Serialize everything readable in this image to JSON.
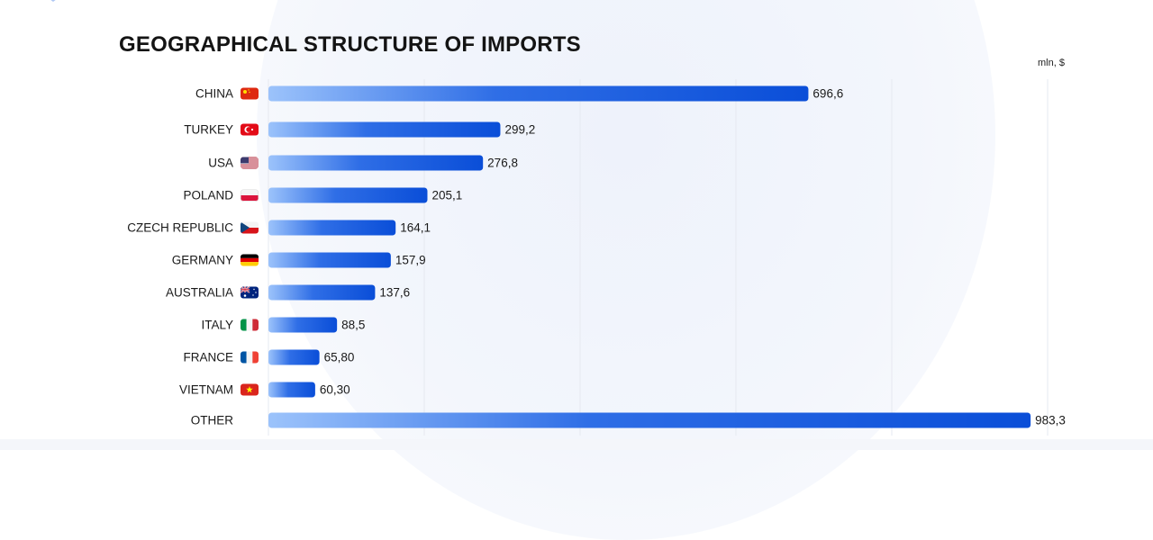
{
  "header": {
    "title": "GEOGRAPHICAL STRUCTURE OF IMPORTS",
    "unit_label": "mln, $"
  },
  "chart_data": {
    "type": "bar",
    "orientation": "horizontal",
    "title": "GEOGRAPHICAL STRUCTURE OF IMPORTS",
    "unit": "mln, $",
    "xlim": [
      0,
      1000
    ],
    "grid": true,
    "categories": [
      "CHINA",
      "TURKEY",
      "USA",
      "POLAND",
      "CZECH REPUBLIC",
      "GERMANY",
      "AUSTRALIA",
      "ITALY",
      "FRANCE",
      "VIETNAM",
      "OTHER"
    ],
    "values": [
      696.6,
      299.2,
      276.8,
      205.1,
      164.1,
      157.9,
      137.6,
      88.5,
      65.8,
      60.3,
      983.3
    ],
    "value_labels": [
      "696,6",
      "299,2",
      "276,8",
      "205,1",
      "164,1",
      "157,9",
      "137,6",
      "88,5",
      "65,80",
      "60,30",
      "983,3"
    ],
    "flags": [
      "china-flag",
      "turkey-flag",
      "usa-flag",
      "poland-flag",
      "czech-flag",
      "germany-flag",
      "australia-flag",
      "italy-flag",
      "france-flag",
      "vietnam-flag",
      ""
    ],
    "colors": {
      "bar_start": "#9cc3fb",
      "bar_end": "#0a4ed8",
      "grid": "#e6e9f0",
      "text": "#1a1a1a"
    }
  }
}
